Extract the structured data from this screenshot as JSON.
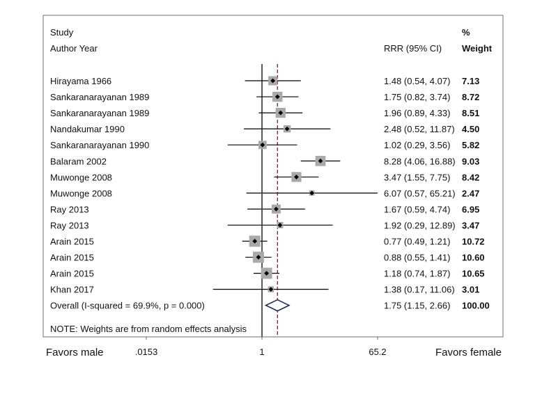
{
  "chart_data": {
    "type": "forest",
    "header": {
      "study_line1": "Study",
      "study_line2": "Author Year",
      "effect_label": "RRR (95% CI)",
      "weight_line1": "%",
      "weight_line2": "Weight"
    },
    "scale": "log",
    "xlim": [
      0.0153,
      65.2
    ],
    "null_value": 1,
    "pooled_value": 1.75,
    "studies": [
      {
        "label": "Hirayama 1966",
        "rrr": 1.48,
        "lo": 0.54,
        "hi": 4.07,
        "ci_text": "1.48 (0.54, 4.07)",
        "weight": 7.13,
        "weight_text": "7.13"
      },
      {
        "label": "Sankaranarayanan 1989",
        "rrr": 1.75,
        "lo": 0.82,
        "hi": 3.74,
        "ci_text": "1.75 (0.82, 3.74)",
        "weight": 8.72,
        "weight_text": "8.72"
      },
      {
        "label": "Sankaranarayanan 1989",
        "rrr": 1.96,
        "lo": 0.89,
        "hi": 4.33,
        "ci_text": "1.96 (0.89, 4.33)",
        "weight": 8.51,
        "weight_text": "8.51"
      },
      {
        "label": "Nandakumar 1990",
        "rrr": 2.48,
        "lo": 0.52,
        "hi": 11.87,
        "ci_text": "2.48 (0.52, 11.87)",
        "weight": 4.5,
        "weight_text": "4.50"
      },
      {
        "label": "Sankaranarayanan 1990",
        "rrr": 1.02,
        "lo": 0.29,
        "hi": 3.56,
        "ci_text": "1.02 (0.29, 3.56)",
        "weight": 5.82,
        "weight_text": "5.82"
      },
      {
        "label": "Balaram 2002",
        "rrr": 8.28,
        "lo": 4.06,
        "hi": 16.88,
        "ci_text": "8.28 (4.06, 16.88)",
        "weight": 9.03,
        "weight_text": "9.03"
      },
      {
        "label": "Muwonge 2008",
        "rrr": 3.47,
        "lo": 1.55,
        "hi": 7.75,
        "ci_text": "3.47 (1.55, 7.75)",
        "weight": 8.42,
        "weight_text": "8.42"
      },
      {
        "label": "Muwonge 2008",
        "rrr": 6.07,
        "lo": 0.57,
        "hi": 65.21,
        "ci_text": "6.07 (0.57, 65.21)",
        "weight": 2.47,
        "weight_text": "2.47"
      },
      {
        "label": "Ray 2013",
        "rrr": 1.67,
        "lo": 0.59,
        "hi": 4.74,
        "ci_text": "1.67 (0.59, 4.74)",
        "weight": 6.95,
        "weight_text": "6.95"
      },
      {
        "label": "Ray 2013",
        "rrr": 1.92,
        "lo": 0.29,
        "hi": 12.89,
        "ci_text": "1.92 (0.29, 12.89)",
        "weight": 3.47,
        "weight_text": "3.47"
      },
      {
        "label": "Arain 2015",
        "rrr": 0.77,
        "lo": 0.49,
        "hi": 1.21,
        "ci_text": "0.77 (0.49, 1.21)",
        "weight": 10.72,
        "weight_text": "10.72"
      },
      {
        "label": "Arain 2015",
        "rrr": 0.88,
        "lo": 0.55,
        "hi": 1.41,
        "ci_text": "0.88 (0.55, 1.41)",
        "weight": 10.6,
        "weight_text": "10.60"
      },
      {
        "label": "Arain 2015",
        "rrr": 1.18,
        "lo": 0.74,
        "hi": 1.87,
        "ci_text": "1.18 (0.74, 1.87)",
        "weight": 10.65,
        "weight_text": "10.65"
      },
      {
        "label": "Khan 2017",
        "rrr": 1.38,
        "lo": 0.17,
        "hi": 11.06,
        "ci_text": "1.38 (0.17, 11.06)",
        "weight": 3.01,
        "weight_text": "3.01"
      }
    ],
    "overall": {
      "label": "Overall  (I-squared = 69.9%, p = 0.000)",
      "rrr": 1.75,
      "lo": 1.15,
      "hi": 2.66,
      "ci_text": "1.75 (1.15, 2.66)",
      "weight_text": "100.00"
    },
    "note": "NOTE: Weights are from random effects analysis",
    "axis": {
      "ticks": [
        0.0153,
        1,
        65.2
      ],
      "tick_labels": [
        ".0153",
        "1",
        "65.2"
      ],
      "left_label": "Favors male",
      "right_label": "Favors female"
    },
    "colors": {
      "square": "#a9a9a9",
      "point": "#000000",
      "diamond": "#1c2270",
      "pooled_line": "#8b1a2b",
      "line": "#000000",
      "box": "#6e6e6e"
    }
  }
}
